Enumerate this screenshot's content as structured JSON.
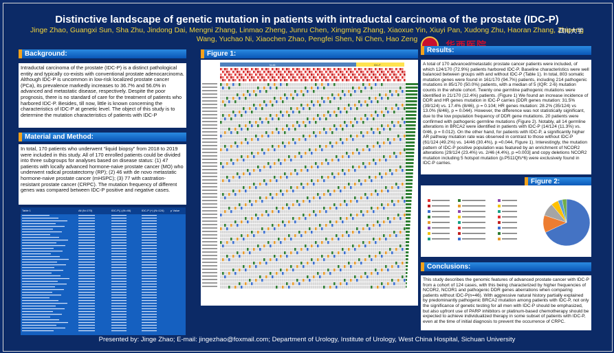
{
  "header": {
    "title": "Distinctive landscape of genetic mutation in patients with intraductal carcinoma of the prostate (IDC-P)",
    "authors_line1": "Jinge Zhao, Guangxi Sun, Sha Zhu, Jindong Dai, Mengni Zhang, Linmao Zheng, Junru Chen, Xingming Zhang, Xiaoxue Yin, Xiuyi Pan, Xudong Zhu, Haoran Zhang, Zhipeng",
    "authors_line2": "Wang, Yuchao Ni, Xiaochen Zhao, Pengfei Shen, Ni Chen, Hao Zeng",
    "logo_text": "华西医院",
    "logo_corner": "四川大学"
  },
  "sections": {
    "background_title": "Background:",
    "background_text": "Intraductal carcinoma of the prostate (IDC-P) is a distinct pathological entity and typically co-exists with conventional prostate adenocarcinoma. Although IDC-P is uncommon in low-risk localized prostate cancer (PCa), its prevalence markedly increases to 36.7% and 56.0% in advanced and metastatic disease, respectively. Despite the poor prognosis, there is no standard of care for the treatment of patients who harbored IDC-P. Besides, till now, little is known concerning the characteristics of IDC-P at genetic level. The object of this study is to determine the mutation characteristics of patients with IDC-P",
    "material_title": "Material and Method:",
    "material_text": "In total, 170 patients who underwent “liquid biopsy” from 2018 to 2019 were included in this study. All of 170 enrolled patients could be divided into three subgroups for analyses based on disease status: (1) 47 patients with locally advanced hormone-naive prostate cancer (MO) who underwent radical prostatectomy (RP); (2) 46 with de novo metastatic hormone-naive prostate cancer (mHSPC); (3) 77 with castration-resistant prostate cancer (CRPC). The mutation frequency of different genes was compared between IDC-P positive and negative cases.",
    "figure1_title": "Figure 1:",
    "results_title": "Results:",
    "results_text": "A total of 170 advanced/metastatic prostate cancer patients were included, of which 124/170 (72.9%) patients harbored IDC-P. Baseline characteristics were well balanced between groups with and without IDC-P (Table 1). In total, 803 somatic mutation genes were found in 161/170 (94.7%) patients, including 214 pathogenic mutations in 85/170 (50.0%) patients, with a median of 5 (IQR: 2-6) mutation counts in the whole cohort. Twenty one germline pathogenic mutations were identified in 21/170 (12.4%) patients. (Figure 1) We found an increase incidence of DDR and HR genes mutation in IDC-P carries (DDR genes mutation: 31.5% (39/124) vs. 17.4% (8/46), p = 0.104; HR genes mutation: 28.2% (35/124) vs 13.0% (6/46), p = 0.044). However, the difference was not statistically significant, due to the low population frequency of DDR gene mutations. 20 patients were confirmed with pathogenic germline mutations (Figure 2). Notably, all 14 germline alterations in BRCA2 were identified in patients with IDC-P (14/124 (11.3%) vs. 0/46, p = 0.012). On the other hand, for patients with IDC-P, a significantly higher AR pathway mutation rate was observed in contrast to those without IDC-P (61/124 (49.2%) vs. 14/46 (30.4%), p =0.044, Figure 1). Interestingly, the mutation pattern of IDC-P positive population was featured by an enrichment of NCOR2 alterations [29/124 (23.4%) vs. 2/46 (4.4%), p =0.003] and copy deletions NCOR2 mutation including 5 hotspot mutation (p.P511Qfs*6) were exclusively found in IDC-P carries.",
    "figure2_title": "Figure 2:",
    "conclusions_title": "Conclusions:",
    "conclusions_text": "This study describes the genomic features of advanced prostate cancer with IDC-P from a cohort of 124 cases, with this being characterized by higher frequencies of NCOR2, NCOR1 and pathogenic DDR genes aberrations when comparing patients without IDC-P(n=46). With aggressive natural history partially explained by predominantly pathogenic BRCA2 mutation among patients with IDC-P, not only the significance of genetic testing for all men with IDC-P should be emphasized, but also upfront use of PARP inhibitors or platinum-based chemotherapy should be expected to achieve individualized therapy in some subset of patients with IDC-P, even at the time of initial diagnosis to prevent the occurrence of CRPC."
  },
  "table1": {
    "title": "Table 1",
    "columns": [
      "",
      "All (N=170)",
      "IDC-P(-) (N=46)",
      "IDC-P (+) (N=124)",
      "p Value"
    ]
  },
  "figure1": {
    "bar_label_left": "N=46",
    "bar_label_right": "IDC-P"
  },
  "figure2": {
    "chart_data": {
      "type": "pie",
      "values": [
        68,
        12,
        9,
        5,
        3,
        3
      ],
      "colors": [
        "#4473c4",
        "#ed7d31",
        "#a5a5a5",
        "#ffc000",
        "#5b9bd5",
        "#70ad47"
      ]
    }
  },
  "footer": {
    "text": "Presented by: Jinge Zhao; E-mail: jingezhao@foxmail.com; Department of Urology, Institute of Urology, West China Hospital, Sichuan University"
  }
}
